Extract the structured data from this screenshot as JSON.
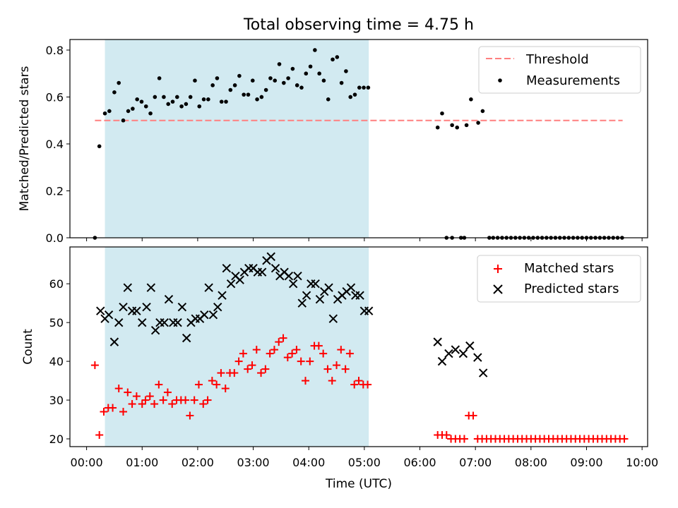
{
  "title": "Total observing time = 4.75 h",
  "colors": {
    "shade": "#add8e6",
    "threshold": "#ff7f7f",
    "measurements": "#000000",
    "matched": "#ff0000",
    "predicted": "#000000"
  },
  "icons": {
    "measurements": "dot-icon",
    "matched": "plus-icon",
    "predicted": "x-icon"
  },
  "chart_data": [
    {
      "type": "scatter",
      "ylabel": "Matched/Predicted stars",
      "ylim": [
        0,
        0.845
      ],
      "yticks": [
        "0.0",
        "0.2",
        "0.4",
        "0.6",
        "0.8"
      ],
      "xlim": [
        -0.3,
        10.1
      ],
      "shaded_span": [
        0.33,
        5.08
      ],
      "legend_position": "upper right",
      "legend": [
        "Threshold",
        "Measurements"
      ],
      "threshold": {
        "name": "Threshold",
        "y": 0.5,
        "x_range": [
          0.15,
          9.65
        ],
        "style": "dashed"
      },
      "series": [
        {
          "name": "Measurements",
          "x": [
            0.15,
            0.23,
            0.33,
            0.41,
            0.5,
            0.58,
            0.66,
            0.75,
            0.83,
            0.91,
            0.99,
            1.07,
            1.15,
            1.23,
            1.31,
            1.39,
            1.47,
            1.55,
            1.63,
            1.71,
            1.79,
            1.87,
            1.95,
            2.03,
            2.11,
            2.19,
            2.27,
            2.35,
            2.43,
            2.51,
            2.59,
            2.67,
            2.75,
            2.83,
            2.91,
            2.99,
            3.07,
            3.15,
            3.23,
            3.31,
            3.39,
            3.47,
            3.55,
            3.63,
            3.71,
            3.79,
            3.87,
            3.95,
            4.03,
            4.11,
            4.19,
            4.27,
            4.35,
            4.43,
            4.51,
            4.59,
            4.67,
            4.75,
            4.83,
            4.91,
            4.99,
            5.07,
            6.32,
            6.4,
            6.48,
            6.58,
            6.67,
            6.74,
            6.84,
            6.92,
            7.05,
            7.13,
            6.58,
            7.4,
            7.48,
            7.56,
            7.64,
            7.72,
            7.8,
            7.88,
            7.96,
            8.04,
            8.12,
            8.2,
            8.28,
            8.36,
            8.44,
            8.52,
            8.6,
            8.68,
            8.76,
            8.84,
            8.92,
            9.0,
            9.08,
            9.16,
            9.24,
            9.32,
            9.4,
            9.48,
            9.56,
            9.64,
            6.8,
            7.25,
            7.32
          ],
          "y": [
            0.0,
            0.39,
            0.53,
            0.54,
            0.62,
            0.66,
            0.5,
            0.54,
            0.55,
            0.59,
            0.58,
            0.56,
            0.53,
            0.6,
            0.68,
            0.6,
            0.57,
            0.58,
            0.6,
            0.56,
            0.57,
            0.6,
            0.67,
            0.56,
            0.59,
            0.59,
            0.65,
            0.68,
            0.58,
            0.58,
            0.63,
            0.65,
            0.69,
            0.61,
            0.61,
            0.67,
            0.59,
            0.6,
            0.63,
            0.68,
            0.67,
            0.74,
            0.66,
            0.68,
            0.72,
            0.65,
            0.64,
            0.7,
            0.73,
            0.8,
            0.7,
            0.67,
            0.59,
            0.76,
            0.77,
            0.66,
            0.71,
            0.6,
            0.61,
            0.64,
            0.64,
            0.64,
            0.47,
            0.53,
            0.0,
            0.48,
            0.47,
            0.0,
            0.48,
            0.59,
            0.49,
            0.54,
            0.0,
            0.0,
            0.0,
            0.0,
            0.0,
            0.0,
            0.0,
            0.0,
            0.0,
            0.0,
            0.0,
            0.0,
            0.0,
            0.0,
            0.0,
            0.0,
            0.0,
            0.0,
            0.0,
            0.0,
            0.0,
            0.0,
            0.0,
            0.0,
            0.0,
            0.0,
            0.0,
            0.0,
            0.0,
            0.0,
            0.0,
            0.0,
            0.0
          ]
        }
      ]
    },
    {
      "type": "scatter",
      "ylabel": "Count",
      "xlabel": "Time (UTC)",
      "ylim": [
        18,
        69.5
      ],
      "yticks": [
        "20",
        "30",
        "40",
        "50",
        "60"
      ],
      "xlim": [
        -0.3,
        10.1
      ],
      "xticks": [
        "00:00",
        "01:00",
        "02:00",
        "03:00",
        "04:00",
        "05:00",
        "06:00",
        "07:00",
        "08:00",
        "09:00",
        "10:00"
      ],
      "shaded_span": [
        0.33,
        5.08
      ],
      "legend_position": "upper right",
      "legend": [
        "Matched stars",
        "Predicted stars"
      ],
      "series": [
        {
          "name": "Matched stars",
          "x": [
            0.15,
            0.23,
            0.31,
            0.39,
            0.47,
            0.58,
            0.66,
            0.74,
            0.82,
            0.9,
            1.0,
            1.06,
            1.14,
            1.22,
            1.3,
            1.38,
            1.46,
            1.54,
            1.62,
            1.7,
            1.78,
            1.86,
            1.94,
            2.02,
            2.1,
            2.18,
            2.26,
            2.34,
            2.42,
            2.5,
            2.58,
            2.66,
            2.74,
            2.82,
            2.9,
            2.98,
            3.06,
            3.14,
            3.22,
            3.3,
            3.38,
            3.46,
            3.54,
            3.62,
            3.7,
            3.78,
            3.86,
            3.94,
            4.02,
            4.1,
            4.18,
            4.26,
            4.34,
            4.42,
            4.5,
            4.58,
            4.66,
            4.74,
            4.82,
            4.9,
            4.98,
            5.06,
            6.32,
            6.4,
            6.48,
            6.56,
            6.64,
            6.72,
            6.8,
            6.88,
            6.96,
            7.04,
            7.12,
            7.2,
            7.28,
            7.36,
            7.44,
            7.52,
            7.6,
            7.68,
            7.76,
            7.84,
            7.92,
            8.0,
            8.08,
            8.16,
            8.24,
            8.32,
            8.4,
            8.48,
            8.56,
            8.64,
            8.72,
            8.8,
            8.88,
            8.96,
            9.04,
            9.12,
            9.2,
            9.28,
            9.36,
            9.44,
            9.52,
            9.6,
            9.68
          ],
          "y": [
            39,
            21,
            27,
            28,
            28,
            33,
            27,
            32,
            29,
            31,
            29,
            30,
            31,
            29,
            34,
            30,
            32,
            29,
            30,
            30,
            30,
            26,
            30,
            34,
            29,
            30,
            35,
            34,
            37,
            33,
            37,
            37,
            40,
            42,
            38,
            39,
            43,
            37,
            38,
            42,
            43,
            45,
            46,
            41,
            42,
            43,
            40,
            35,
            40,
            44,
            44,
            42,
            38,
            35,
            39,
            43,
            38,
            42,
            34,
            35,
            34,
            34,
            21,
            21,
            21,
            20,
            20,
            20,
            20,
            26,
            26,
            20,
            20,
            20,
            20,
            20,
            20,
            20,
            20,
            20,
            20,
            20,
            20,
            20,
            20,
            20,
            20,
            20,
            20,
            20,
            20,
            20,
            20,
            20,
            20,
            20,
            20,
            20,
            20,
            20,
            20,
            20,
            20,
            20,
            20
          ]
        },
        {
          "name": "Predicted stars",
          "x": [
            0.25,
            0.33,
            0.4,
            0.5,
            0.58,
            0.66,
            0.74,
            0.82,
            0.9,
            1.0,
            1.08,
            1.16,
            1.24,
            1.32,
            1.4,
            1.48,
            1.56,
            1.64,
            1.72,
            1.8,
            1.88,
            1.96,
            2.04,
            2.12,
            2.2,
            2.28,
            2.36,
            2.44,
            2.52,
            2.6,
            2.68,
            2.76,
            2.84,
            2.92,
            3.0,
            3.08,
            3.16,
            3.24,
            3.32,
            3.4,
            3.48,
            3.56,
            3.64,
            3.72,
            3.8,
            3.88,
            3.96,
            4.04,
            4.12,
            4.2,
            4.28,
            4.36,
            4.44,
            4.52,
            4.6,
            4.68,
            4.76,
            4.84,
            4.92,
            5.0,
            5.08,
            6.32,
            6.4,
            6.52,
            6.64,
            6.78,
            6.9,
            7.04,
            7.14
          ],
          "y": [
            53,
            51,
            52,
            45,
            50,
            54,
            59,
            53,
            53,
            50,
            54,
            59,
            48,
            50,
            50,
            56,
            50,
            50,
            54,
            46,
            50,
            51,
            51,
            52,
            59,
            52,
            54,
            57,
            64,
            60,
            62,
            61,
            63,
            64,
            64,
            63,
            63,
            66,
            67,
            64,
            62,
            63,
            62,
            60,
            62,
            55,
            57,
            60,
            60,
            56,
            58,
            59,
            51,
            56,
            57,
            58,
            59,
            57,
            57,
            53,
            53,
            45,
            40,
            42,
            43,
            42,
            44,
            41,
            37
          ]
        }
      ]
    }
  ]
}
